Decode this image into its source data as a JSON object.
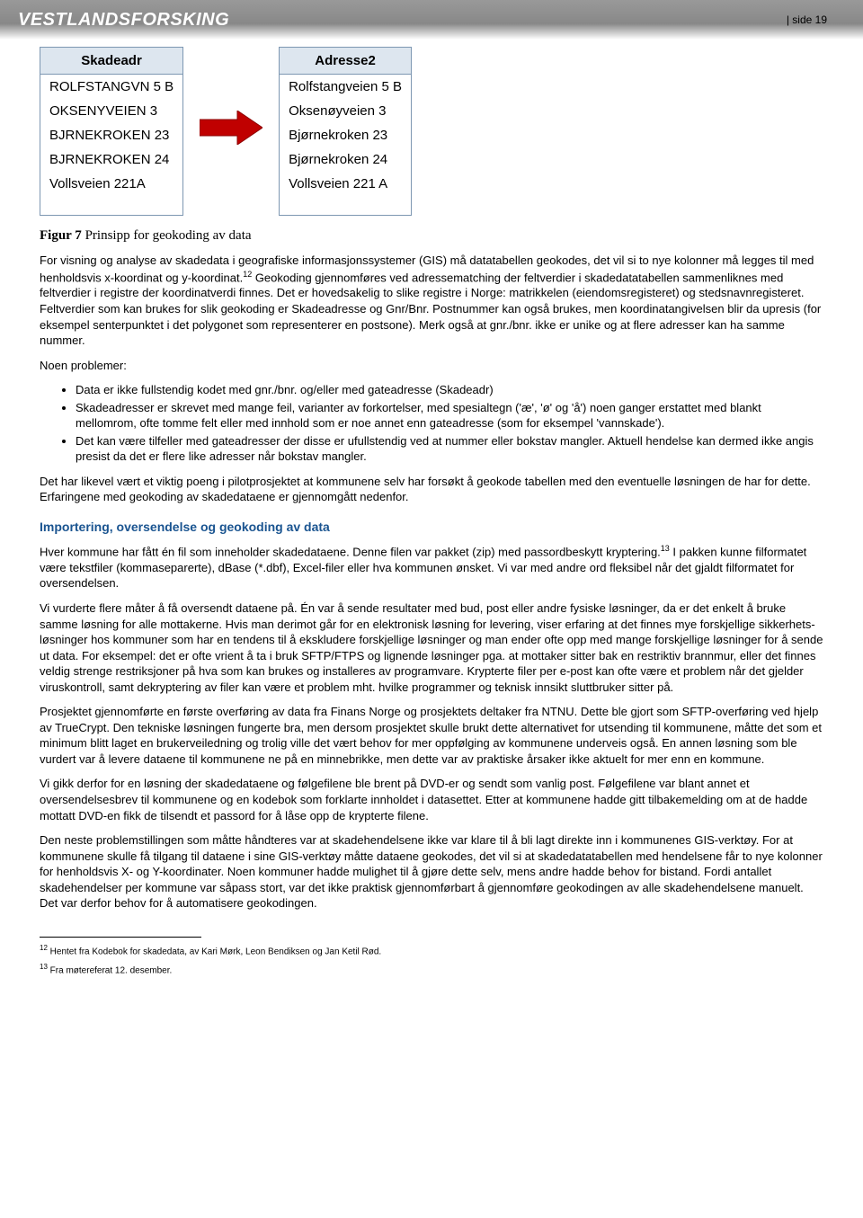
{
  "header": {
    "brand": "VESTLANDSFORSKING",
    "pageLabel": "side 19"
  },
  "figure": {
    "left": {
      "header": "Skadeadr",
      "rows": [
        "ROLFSTANGVN 5 B",
        "OKSENYVEIEN 3",
        "BJRNEKROKEN 23",
        "BJRNEKROKEN 24",
        "Vollsveien 221A",
        ""
      ],
      "header_bg": "#dde6ef",
      "border_color": "#7d97b2",
      "fontsize": 15
    },
    "right": {
      "header": "Adresse2",
      "rows": [
        "Rolfstangveien 5 B",
        "Oksenøyveien 3",
        "Bjørnekroken 23",
        "Bjørnekroken 24",
        "Vollsveien 221 A",
        ""
      ],
      "header_bg": "#dde6ef",
      "border_color": "#7d97b2",
      "fontsize": 15
    },
    "arrow": {
      "fill": "#c00000",
      "width": 70,
      "height": 38
    }
  },
  "caption": {
    "label": "Figur 7",
    "text": " Prinsipp for geokoding av data"
  },
  "para1": "For visning og analyse av skadedata i geografiske informasjonssystemer (GIS) må datatabellen geokodes, det vil si to nye kolonner må legges til med henholdsvis x-koordinat og y-koordinat.",
  "sup12": "12",
  "para1b": " Geokoding gjennomføres ved adressematching der feltverdier i skadedatatabellen sammenliknes med feltverdier i registre der koordinatverdi finnes. Det er hovedsakelig to slike registre i Norge: matrikkelen (eiendomsregisteret) og stedsnavnregisteret. Feltverdier som kan brukes for slik geokoding er Skadeadresse og Gnr/Bnr. Postnummer kan også brukes, men koordinatangivelsen blir da upresis (for eksempel senterpunktet i det polygonet som representerer en postsone). Merk også at gnr./bnr. ikke er unike og at flere adresser kan ha samme nummer.",
  "problemsLabel": "Noen problemer:",
  "bullets": [
    "Data er ikke fullstendig kodet med gnr./bnr. og/eller med gateadresse (Skadeadr)",
    "Skadeadresser er skrevet med mange feil, varianter av forkortelser, med spesialtegn ('æ', 'ø' og 'å') noen ganger erstattet med blankt mellomrom, ofte tomme felt eller med innhold som er noe annet enn gateadresse (som for eksempel 'vannskade').",
    "Det kan være tilfeller med gateadresser der disse er ufullstendig ved at nummer eller bokstav mangler. Aktuell hendelse kan dermed ikke angis presist da det er flere like adresser når bokstav mangler."
  ],
  "para2": "Det har likevel vært et viktig poeng i pilotprosjektet at kommunene selv har forsøkt å geokode tabellen med den eventuelle løsningen de har for dette. Erfaringene med geokoding av skadedataene er gjennomgått nedenfor.",
  "sectionTitle": "Importering, oversendelse og geokoding av data",
  "para3a": "Hver kommune har fått én fil som inneholder skadedataene. Denne filen var pakket (zip) med passordbeskytt kryptering.",
  "sup13": "13",
  "para3b": " I pakken kunne filformatet være tekstfiler (kommaseparerte), dBase (*.dbf), Excel-filer eller hva kommunen ønsket. Vi var med andre ord fleksibel når det gjaldt filformatet for oversendelsen.",
  "para4": "Vi vurderte flere måter å få oversendt dataene på. Én var å sende resultater med bud, post eller andre fysiske løsninger, da er det enkelt å bruke samme løsning for alle mottakerne. Hvis man derimot går for en elektronisk løsning for levering, viser erfaring at det finnes mye forskjellige sikkerhets­løsninger hos kommuner som har en tendens til å ekskludere forskjellige løsninger og man ender ofte opp med mange forskjellige løsninger for å sende ut data.  For eksempel: det er ofte vrient å ta i bruk SFTP/FTPS og lignende løsninger pga. at mottaker sitter bak en restriktiv brannmur, eller det finnes veldig strenge restriksjoner på hva som kan brukes og installeres av programvare. Krypterte filer per e-post kan ofte være et problem når det gjelder viruskontroll, samt dekryptering av filer kan være et problem mht. hvilke programmer og teknisk innsikt sluttbruker sitter på.",
  "para5": "Prosjektet gjennomførte en første overføring av data fra Finans Norge og prosjektets deltaker fra NTNU. Dette ble gjort som SFTP-overføring ved hjelp av TrueCrypt. Den tekniske løsningen fungerte bra, men dersom prosjektet skulle brukt dette alternativet for utsending til kommunene, måtte det som et minimum blitt laget en brukerveiledning og trolig ville det vært behov for mer oppfølging av kommunene underveis også. En annen løsning som ble vurdert var å levere dataene til kommunene ne på en minnebrikke, men dette var av praktiske årsaker ikke aktuelt for mer enn en kommune.",
  "para6": "Vi gikk derfor for en løsning der skadedataene og følgefilene ble brent på DVD-er og sendt som vanlig post. Følgefilene var blant annet et oversendelsesbrev til kommunene og en kodebok som forklarte innholdet i datasettet. Etter at kommunene hadde gitt tilbakemelding om at de hadde mottatt DVD-en fikk de tilsendt et passord for å låse opp de krypterte filene.",
  "para7": "Den neste problemstillingen som måtte håndteres var at skadehendelsene ikke var klare til å bli lagt direkte inn i kommunenes GIS-verktøy. For at kommunene skulle få tilgang til dataene i sine GIS-verktøy måtte dataene geokodes, det vil si at skadedatatabellen med hendelsene får to nye kolonner for henholdsvis X- og Y-koordinater. Noen kommuner hadde mulighet til å gjøre dette selv, mens andre hadde behov for bistand. Fordi antallet skadehendelser per kommune var såpass stort, var det ikke praktisk gjennomførbart å gjennomføre geokodingen av alle skadehendelsene manuelt. Det var derfor behov for å automatisere geokodingen.",
  "footnote12": " Hentet fra Kodebok for skadedata, av Kari Mørk, Leon Bendiksen og Jan Ketil Rød.",
  "footnote13": " Fra møtereferat 12. desember."
}
